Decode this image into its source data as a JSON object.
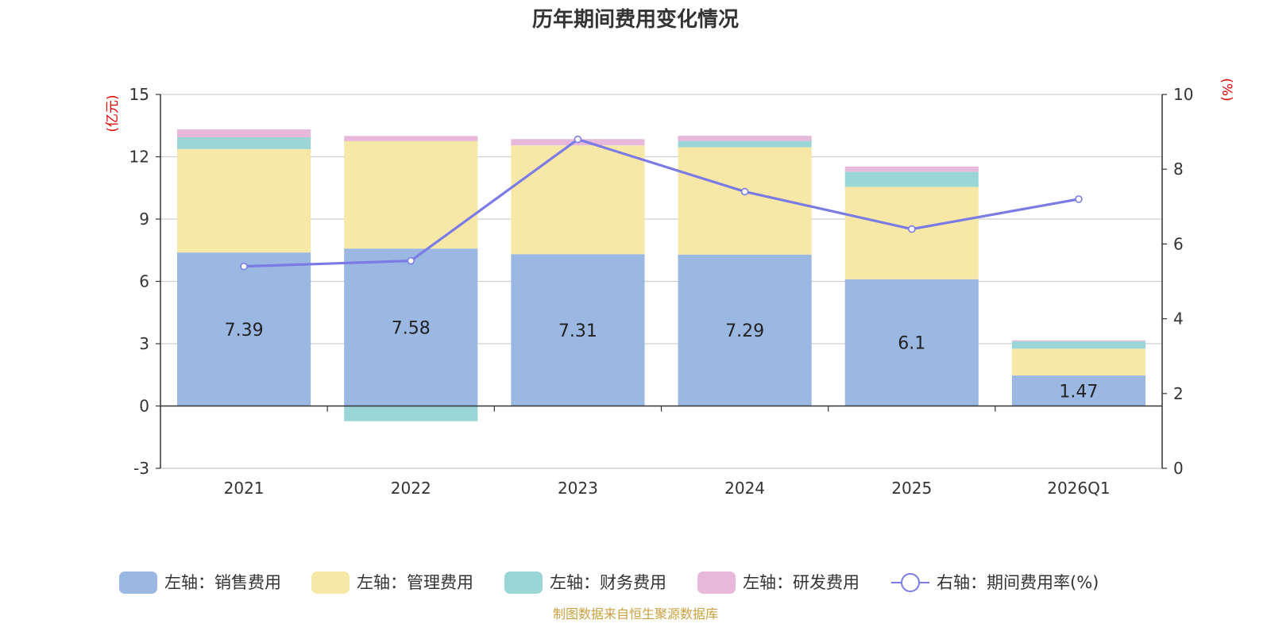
{
  "chart_data": {
    "type": "bar",
    "title": "历年期间费用变化情况",
    "categories": [
      "2021",
      "2022",
      "2023",
      "2024",
      "2025",
      "2026Q1"
    ],
    "left_axis": {
      "unit": "(亿元)",
      "ylim": [
        -3,
        15
      ],
      "ticks": [
        -3,
        0,
        3,
        6,
        9,
        12,
        15
      ]
    },
    "right_axis": {
      "unit": "(%)",
      "ylim": [
        0,
        10
      ],
      "ticks": [
        0,
        2,
        4,
        6,
        8,
        10
      ]
    },
    "series": [
      {
        "name": "左轴：销售费用",
        "axis": "left",
        "type": "bar",
        "color": "#9bb8e2",
        "values": [
          7.39,
          7.58,
          7.31,
          7.29,
          6.1,
          1.47
        ],
        "show_labels": true
      },
      {
        "name": "左轴：管理费用",
        "axis": "left",
        "type": "bar",
        "color": "#f8e8a8",
        "values": [
          4.98,
          5.17,
          5.24,
          5.17,
          4.45,
          1.29
        ]
      },
      {
        "name": "左轴：财务费用",
        "axis": "left",
        "type": "bar",
        "color": "#9ad6d6",
        "values": [
          0.57,
          -0.73,
          0.0,
          0.3,
          0.73,
          0.35
        ]
      },
      {
        "name": "左轴：研发费用",
        "axis": "left",
        "type": "bar",
        "color": "#e8b8da",
        "values": [
          0.38,
          0.25,
          0.3,
          0.25,
          0.25,
          0.05
        ]
      },
      {
        "name": "右轴：期间费用率(%)",
        "axis": "right",
        "type": "line",
        "color": "#7b7be6",
        "values": [
          5.4,
          5.55,
          8.8,
          7.4,
          6.4,
          7.2
        ]
      }
    ],
    "grid": true,
    "legend_position": "bottom"
  },
  "source_note": "制图数据来自恒生聚源数据库"
}
